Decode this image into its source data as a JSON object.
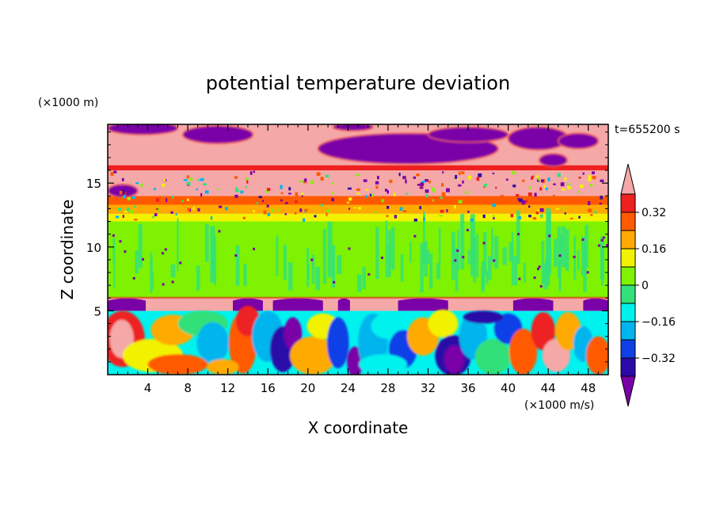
{
  "chart_data": {
    "type": "heatmap",
    "title": "potential temperature deviation",
    "xlabel": "X coordinate",
    "ylabel": "Z coordinate",
    "x_unit": "(×1000 m/s)",
    "y_unit": "(×1000 m)",
    "time_label": "t=655200 s",
    "xlim": [
      0,
      50
    ],
    "ylim": [
      0,
      19.6
    ],
    "x_ticks": [
      4,
      8,
      12,
      16,
      20,
      24,
      28,
      32,
      36,
      40,
      44,
      48
    ],
    "y_ticks": [
      5,
      10,
      15
    ],
    "colorbar": {
      "levels": [
        -0.4,
        -0.32,
        -0.24,
        -0.16,
        -0.08,
        0,
        0.08,
        0.16,
        0.24,
        0.32,
        0.4
      ],
      "colors": [
        "#7a00a8",
        "#2b0aa8",
        "#0f40e6",
        "#00b4ee",
        "#00f2ee",
        "#33e07a",
        "#7ef200",
        "#f2f200",
        "#ffaa00",
        "#ff5a00",
        "#ee2020",
        "#f5a8a8"
      ],
      "labels": [
        "0.32",
        "0.16",
        "0",
        "−0.16",
        "−0.32"
      ],
      "label_values": [
        0.32,
        0.16,
        0,
        -0.16,
        -0.32
      ],
      "extend": "both"
    },
    "layers": [
      {
        "z_range": [
          0,
          5
        ],
        "description_value": "mixed -0.4 to 0.4"
      },
      {
        "z_range": [
          5,
          6
        ],
        "value": 0.4
      },
      {
        "z_range": [
          6,
          12
        ],
        "value": 0.0
      },
      {
        "z_range": [
          12,
          14
        ],
        "value": 0.16
      },
      {
        "z_range": [
          14,
          16
        ],
        "value": 0.32
      },
      {
        "z_range": [
          16,
          19.6
        ],
        "value": 0.4
      }
    ]
  }
}
